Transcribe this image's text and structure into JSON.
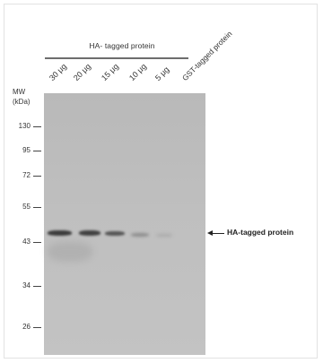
{
  "header": {
    "title": "HA- tagged protein"
  },
  "lanes": [
    "30 μg",
    "20 μg",
    "15 μg",
    "10 μg",
    "5 μg",
    "GST-tagged protein"
  ],
  "mw": {
    "title_line1": "MW",
    "title_line2": "(kDa)",
    "markers": [
      "130",
      "95",
      "72",
      "55",
      "43",
      "34",
      "26"
    ]
  },
  "annotation": {
    "label": "HA-tagged protein"
  },
  "colors": {
    "membrane": "#bdbdbd",
    "band": "#3a3a3a",
    "text": "#333333"
  }
}
